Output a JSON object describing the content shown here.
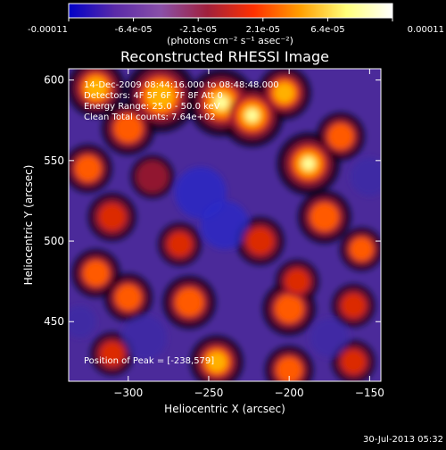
{
  "colorbar": {
    "tick_labels": [
      "-0.00011",
      "-6.4e-05",
      "-2.1e-05",
      "2.1e-05",
      "6.4e-05",
      "0.00011"
    ],
    "unit_label": "(photons cm⁻² s⁻¹ asec⁻²)",
    "colors": [
      "#0000c8",
      "#5a2aa8",
      "#8a50a8",
      "#a0203c",
      "#ff3000",
      "#ff9e00",
      "#ffff7a",
      "#ffffff"
    ]
  },
  "chart_data": {
    "type": "heatmap",
    "title": "Reconstructed RHESSI Image",
    "xlabel": "Heliocentric X (arcsec)",
    "ylabel": "Heliocentric Y (arcsec)",
    "xlim": [
      -337,
      -143
    ],
    "ylim": [
      413,
      607
    ],
    "xticks": [
      -300,
      -250,
      -200,
      -150
    ],
    "yticks": [
      450,
      500,
      550,
      600
    ],
    "annotations": [
      "14-Dec-2009 08:44:16.000 to 08:48:48.000",
      "Detectors: 4F 5F 6F 7F 8F  Att 0",
      "Energy Range: 25.0 - 50.0 keV",
      "Clean    Total counts: 7.64e+02"
    ],
    "peak_label": "Position of Peak = [-238,579]",
    "peak": [
      -238,
      579
    ],
    "blobs": [
      {
        "x": -242,
        "y": 586,
        "value": 1.0,
        "sigma": 14
      },
      {
        "x": -223,
        "y": 578,
        "value": 0.95,
        "sigma": 13
      },
      {
        "x": -203,
        "y": 592,
        "value": 0.75,
        "sigma": 11
      },
      {
        "x": -280,
        "y": 590,
        "value": 0.8,
        "sigma": 15
      },
      {
        "x": -320,
        "y": 595,
        "value": 0.7,
        "sigma": 12
      },
      {
        "x": -300,
        "y": 570,
        "value": 0.6,
        "sigma": 11
      },
      {
        "x": -188,
        "y": 548,
        "value": 0.9,
        "sigma": 13
      },
      {
        "x": -168,
        "y": 565,
        "value": 0.65,
        "sigma": 10
      },
      {
        "x": -325,
        "y": 545,
        "value": 0.55,
        "sigma": 10
      },
      {
        "x": -285,
        "y": 540,
        "value": 0.35,
        "sigma": 9
      },
      {
        "x": -178,
        "y": 515,
        "value": 0.55,
        "sigma": 11
      },
      {
        "x": -218,
        "y": 500,
        "value": 0.45,
        "sigma": 10
      },
      {
        "x": -155,
        "y": 495,
        "value": 0.5,
        "sigma": 9
      },
      {
        "x": -310,
        "y": 515,
        "value": 0.45,
        "sigma": 10
      },
      {
        "x": -268,
        "y": 498,
        "value": 0.4,
        "sigma": 9
      },
      {
        "x": -320,
        "y": 480,
        "value": 0.6,
        "sigma": 10
      },
      {
        "x": -300,
        "y": 465,
        "value": 0.55,
        "sigma": 10
      },
      {
        "x": -262,
        "y": 462,
        "value": 0.65,
        "sigma": 11
      },
      {
        "x": -200,
        "y": 458,
        "value": 0.55,
        "sigma": 11
      },
      {
        "x": -160,
        "y": 460,
        "value": 0.45,
        "sigma": 9
      },
      {
        "x": -195,
        "y": 475,
        "value": 0.4,
        "sigma": 9
      },
      {
        "x": -245,
        "y": 425,
        "value": 0.75,
        "sigma": 11
      },
      {
        "x": -200,
        "y": 420,
        "value": 0.55,
        "sigma": 10
      },
      {
        "x": -160,
        "y": 425,
        "value": 0.45,
        "sigma": 9
      },
      {
        "x": -310,
        "y": 430,
        "value": 0.45,
        "sigma": 9
      },
      {
        "x": -255,
        "y": 530,
        "value": -0.55,
        "sigma": 16
      },
      {
        "x": -240,
        "y": 510,
        "value": -0.5,
        "sigma": 15
      },
      {
        "x": -290,
        "y": 440,
        "value": -0.45,
        "sigma": 14
      },
      {
        "x": -175,
        "y": 440,
        "value": -0.4,
        "sigma": 12
      },
      {
        "x": -150,
        "y": 540,
        "value": -0.35,
        "sigma": 12
      },
      {
        "x": -330,
        "y": 450,
        "value": -0.3,
        "sigma": 10
      }
    ]
  },
  "timestamp": "30-Jul-2013 05:32"
}
